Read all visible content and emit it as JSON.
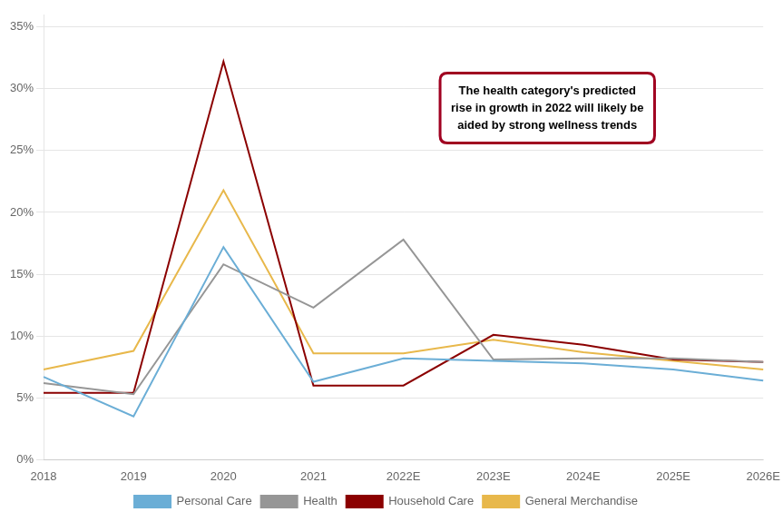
{
  "chart_data": {
    "type": "line",
    "categories": [
      "2018",
      "2019",
      "2020",
      "2021",
      "2022E",
      "2023E",
      "2024E",
      "2025E",
      "2026E"
    ],
    "series": [
      {
        "name": "Personal Care",
        "color": "#6baed6",
        "values": [
          0.067,
          0.035,
          0.172,
          0.063,
          0.082,
          0.08,
          0.078,
          0.073,
          0.064
        ]
      },
      {
        "name": "Health",
        "color": "#969696",
        "values": [
          0.062,
          0.053,
          0.158,
          0.123,
          0.178,
          0.081,
          0.082,
          0.082,
          0.079
        ]
      },
      {
        "name": "Household Care",
        "color": "#8b0000",
        "values": [
          0.054,
          0.054,
          0.322,
          0.06,
          0.06,
          0.101,
          0.093,
          0.081,
          0.079
        ]
      },
      {
        "name": "General Merchandise",
        "color": "#e8b84b",
        "values": [
          0.073,
          0.088,
          0.218,
          0.086,
          0.086,
          0.097,
          0.087,
          0.08,
          0.073
        ]
      }
    ],
    "ylim": [
      0,
      0.36
    ],
    "yticks": [
      {
        "value": 0,
        "label": "0%"
      },
      {
        "value": 0.05,
        "label": "5%"
      },
      {
        "value": 0.1,
        "label": "10%"
      },
      {
        "value": 0.15,
        "label": "15%"
      },
      {
        "value": 0.2,
        "label": "20%"
      },
      {
        "value": 0.25,
        "label": "25%"
      },
      {
        "value": 0.3,
        "label": "30%"
      },
      {
        "value": 0.35,
        "label": "35%"
      }
    ],
    "annotations": [
      {
        "text": "The health category's predicted\nrise in growth in 2022 will likely be\naided by strong wellness trends",
        "color": "#a00020"
      }
    ],
    "grid": true,
    "legend": "bottom"
  }
}
